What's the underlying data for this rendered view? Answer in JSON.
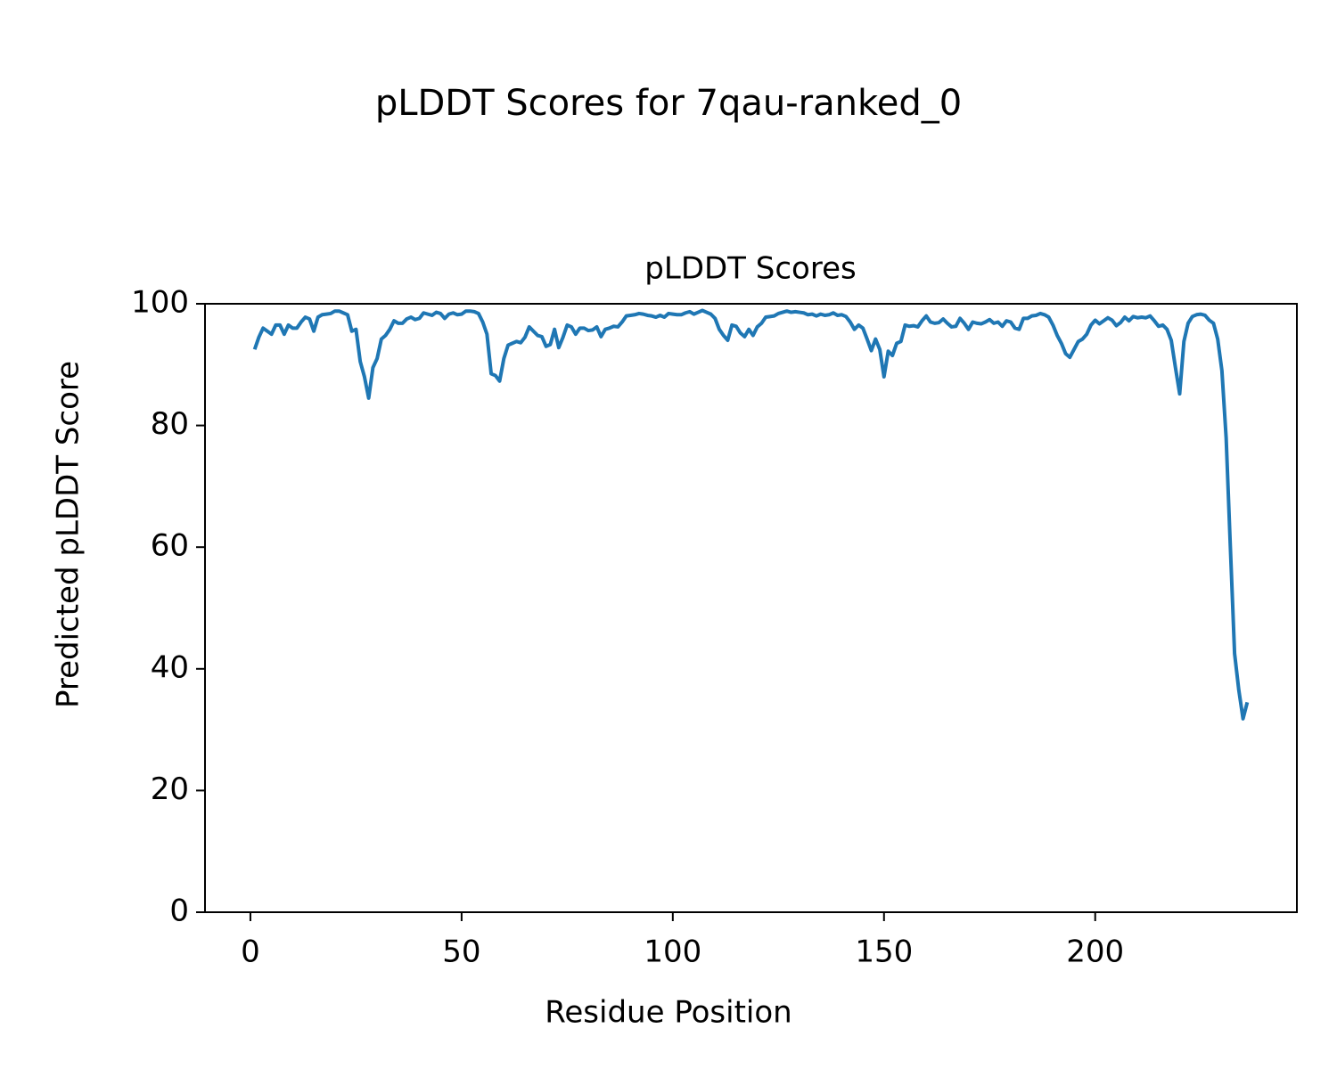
{
  "chart_data": {
    "type": "line",
    "suptitle": "pLDDT Scores for 7qau-ranked_0",
    "title": "pLDDT Scores",
    "x_label": "Residue Position",
    "y_label": "Predicted pLDDT Score",
    "color": "#1f77b4",
    "x": [
      1,
      2,
      3,
      4,
      5,
      6,
      7,
      8,
      9,
      10,
      11,
      12,
      13,
      14,
      15,
      16,
      17,
      18,
      19,
      20,
      21,
      22,
      23,
      24,
      25,
      26,
      27,
      28,
      29,
      30,
      31,
      32,
      33,
      34,
      35,
      36,
      37,
      38,
      39,
      40,
      41,
      42,
      43,
      44,
      45,
      46,
      47,
      48,
      49,
      50,
      51,
      52,
      53,
      54,
      55,
      56,
      57,
      58,
      59,
      60,
      61,
      62,
      63,
      64,
      65,
      66,
      67,
      68,
      69,
      70,
      71,
      72,
      73,
      74,
      75,
      76,
      77,
      78,
      79,
      80,
      81,
      82,
      83,
      84,
      85,
      86,
      87,
      88,
      89,
      90,
      91,
      92,
      93,
      94,
      95,
      96,
      97,
      98,
      99,
      100,
      101,
      102,
      103,
      104,
      105,
      106,
      107,
      108,
      109,
      110,
      111,
      112,
      113,
      114,
      115,
      116,
      117,
      118,
      119,
      120,
      121,
      122,
      123,
      124,
      125,
      126,
      127,
      128,
      129,
      130,
      131,
      132,
      133,
      134,
      135,
      136,
      137,
      138,
      139,
      140,
      141,
      142,
      143,
      144,
      145,
      146,
      147,
      148,
      149,
      150,
      151,
      152,
      153,
      154,
      155,
      156,
      157,
      158,
      159,
      160,
      161,
      162,
      163,
      164,
      165,
      166,
      167,
      168,
      169,
      170,
      171,
      172,
      173,
      174,
      175,
      176,
      177,
      178,
      179,
      180,
      181,
      182,
      183,
      184,
      185,
      186,
      187,
      188,
      189,
      190,
      191,
      192,
      193,
      194,
      195,
      196,
      197,
      198,
      199,
      200,
      201,
      202,
      203,
      204,
      205,
      206,
      207,
      208,
      209,
      210,
      211,
      212,
      213,
      214,
      215,
      216,
      217,
      218,
      219,
      220,
      221,
      222,
      223,
      224,
      225,
      226,
      227,
      228,
      229,
      230,
      231,
      232,
      233,
      234,
      235,
      236
    ],
    "values": [
      92.5,
      94.5,
      96,
      95.5,
      95,
      96.5,
      96.5,
      95,
      96.5,
      96,
      96,
      97,
      97.8,
      97.5,
      95.5,
      97.8,
      98.2,
      98.3,
      98.4,
      98.8,
      98.8,
      98.5,
      98.2,
      95.5,
      95.8,
      90.5,
      88,
      84.5,
      89.5,
      91,
      94.2,
      94.8,
      95.8,
      97.2,
      96.8,
      96.8,
      97.5,
      97.8,
      97.4,
      97.6,
      98.5,
      98.3,
      98.1,
      98.6,
      98.4,
      97.6,
      98.3,
      98.5,
      98.2,
      98.3,
      98.8,
      98.8,
      98.7,
      98.4,
      97,
      95,
      88.5,
      88.2,
      87.3,
      91,
      93.2,
      93.5,
      93.8,
      93.6,
      94.5,
      96.2,
      95.5,
      94.8,
      94.6,
      93,
      93.3,
      95.8,
      92.8,
      94.5,
      96.5,
      96.2,
      95,
      96,
      96,
      95.6,
      95.7,
      96.2,
      94.6,
      95.8,
      96,
      96.3,
      96.2,
      97,
      98,
      98.1,
      98.2,
      98.4,
      98.3,
      98.1,
      98,
      97.8,
      98.1,
      97.8,
      98.4,
      98.3,
      98.2,
      98.2,
      98.5,
      98.7,
      98.3,
      98.6,
      98.9,
      98.6,
      98.3,
      97.6,
      95.8,
      94.8,
      94,
      96.5,
      96.3,
      95.2,
      94.6,
      95.8,
      94.8,
      96.2,
      96.8,
      97.8,
      97.9,
      98,
      98.4,
      98.6,
      98.8,
      98.6,
      98.7,
      98.6,
      98.5,
      98.2,
      98.3,
      98,
      98.3,
      98.1,
      98.2,
      98.5,
      98.1,
      98.2,
      97.9,
      97,
      95.8,
      96.5,
      96,
      94.2,
      92.3,
      94.2,
      92.5,
      88,
      92.2,
      91.5,
      93.5,
      93.8,
      96.5,
      96.3,
      96.4,
      96.2,
      97.2,
      98,
      97,
      96.8,
      96.9,
      97.5,
      96.8,
      96.2,
      96.3,
      97.6,
      96.8,
      95.8,
      97,
      96.8,
      96.7,
      97,
      97.4,
      96.8,
      97,
      96.3,
      97.2,
      97,
      96,
      95.8,
      97.6,
      97.6,
      98,
      98.1,
      98.4,
      98.2,
      97.8,
      96.5,
      94.8,
      93.5,
      91.8,
      91.2,
      92.5,
      93.8,
      94.2,
      95,
      96.5,
      97.3,
      96.7,
      97.2,
      97.7,
      97.3,
      96.4,
      96.9,
      97.8,
      97.2,
      97.9,
      97.7,
      97.8,
      97.7,
      98,
      97.2,
      96.3,
      96.5,
      95.8,
      94,
      89.5,
      85.2,
      93.8,
      96.8,
      97.9,
      98.2,
      98.3,
      98.1,
      97.3,
      96.8,
      94.2,
      89,
      78,
      60,
      42.5,
      36.5,
      31.8,
      34.5
    ],
    "xlim": [
      -10.75,
      247.75
    ],
    "xticks": [
      0,
      50,
      100,
      150,
      200
    ],
    "ylim": [
      0,
      100
    ],
    "yticks": [
      0,
      20,
      40,
      60,
      80,
      100
    ]
  }
}
